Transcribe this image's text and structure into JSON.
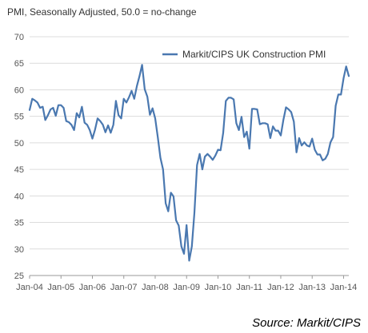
{
  "chart_data": {
    "type": "line",
    "subtitle": "PMI, Seasonally Adjusted, 50.0 = no-change",
    "source": "Source: Markit/CIPS",
    "xlabel": "",
    "ylabel": "",
    "ylim": [
      25,
      70
    ],
    "y_ticks": [
      25,
      30,
      35,
      40,
      45,
      50,
      55,
      60,
      65,
      70
    ],
    "x_ticks": [
      "Jan-04",
      "Jan-05",
      "Jan-06",
      "Jan-07",
      "Jan-08",
      "Jan-09",
      "Jan-10",
      "Jan-11",
      "Jan-12",
      "Jan-13",
      "Jan-14"
    ],
    "x_range": [
      "2004-01",
      "2014-03"
    ],
    "grid": "horizontal",
    "legend_position": "top-right",
    "series": [
      {
        "name": "Markit/CIPS UK Construction PMI",
        "color": "#4a78b0",
        "x": [
          "2004-01",
          "2004-02",
          "2004-03",
          "2004-04",
          "2004-05",
          "2004-06",
          "2004-07",
          "2004-08",
          "2004-09",
          "2004-10",
          "2004-11",
          "2004-12",
          "2005-01",
          "2005-02",
          "2005-03",
          "2005-04",
          "2005-05",
          "2005-06",
          "2005-07",
          "2005-08",
          "2005-09",
          "2005-10",
          "2005-11",
          "2005-12",
          "2006-01",
          "2006-02",
          "2006-03",
          "2006-04",
          "2006-05",
          "2006-06",
          "2006-07",
          "2006-08",
          "2006-09",
          "2006-10",
          "2006-11",
          "2006-12",
          "2007-01",
          "2007-02",
          "2007-03",
          "2007-04",
          "2007-05",
          "2007-06",
          "2007-07",
          "2007-08",
          "2007-09",
          "2007-10",
          "2007-11",
          "2007-12",
          "2008-01",
          "2008-02",
          "2008-03",
          "2008-04",
          "2008-05",
          "2008-06",
          "2008-07",
          "2008-08",
          "2008-09",
          "2008-10",
          "2008-11",
          "2008-12",
          "2009-01",
          "2009-02",
          "2009-03",
          "2009-04",
          "2009-05",
          "2009-06",
          "2009-07",
          "2009-08",
          "2009-09",
          "2009-10",
          "2009-11",
          "2009-12",
          "2010-01",
          "2010-02",
          "2010-03",
          "2010-04",
          "2010-05",
          "2010-06",
          "2010-07",
          "2010-08",
          "2010-09",
          "2010-10",
          "2010-11",
          "2010-12",
          "2011-01",
          "2011-02",
          "2011-03",
          "2011-04",
          "2011-05",
          "2011-06",
          "2011-07",
          "2011-08",
          "2011-09",
          "2011-10",
          "2011-11",
          "2011-12",
          "2012-01",
          "2012-02",
          "2012-03",
          "2012-04",
          "2012-05",
          "2012-06",
          "2012-07",
          "2012-08",
          "2012-09",
          "2012-10",
          "2012-11",
          "2012-12",
          "2013-01",
          "2013-02",
          "2013-03",
          "2013-04",
          "2013-05",
          "2013-06",
          "2013-07",
          "2013-08",
          "2013-09",
          "2013-10",
          "2013-11",
          "2013-12",
          "2014-01",
          "2014-02",
          "2014-03"
        ],
        "values": [
          56.2,
          58.3,
          58.0,
          57.6,
          56.6,
          56.8,
          54.3,
          55.2,
          56.3,
          56.6,
          55.1,
          57.1,
          57.1,
          56.6,
          54.1,
          53.9,
          53.4,
          52.4,
          55.6,
          54.8,
          56.8,
          53.8,
          53.4,
          52.4,
          50.8,
          52.5,
          54.6,
          54.1,
          53.4,
          52.0,
          53.3,
          51.9,
          53.4,
          57.9,
          55.2,
          54.6,
          58.3,
          57.6,
          58.6,
          59.8,
          58.3,
          60.7,
          62.6,
          64.7,
          60.1,
          58.7,
          55.3,
          56.5,
          54.6,
          51.0,
          47.2,
          45.0,
          38.6,
          37.1,
          40.6,
          39.9,
          35.4,
          34.4,
          30.5,
          29.1,
          34.5,
          27.8,
          30.5,
          36.8,
          45.8,
          47.9,
          45.0,
          47.4,
          47.9,
          47.4,
          46.8,
          47.6,
          48.7,
          48.6,
          51.9,
          57.9,
          58.5,
          58.5,
          58.2,
          53.7,
          52.4,
          54.9,
          51.1,
          52.1,
          48.9,
          56.4,
          56.4,
          56.3,
          53.5,
          53.7,
          53.7,
          53.5,
          50.9,
          53.1,
          52.3,
          52.3,
          51.4,
          54.3,
          56.7,
          56.3,
          55.8,
          54.0,
          48.2,
          50.9,
          49.5,
          50.1,
          49.5,
          49.3,
          50.8,
          48.7,
          47.8,
          47.8,
          46.7,
          47.0,
          47.9,
          50.1,
          51.1,
          57.0,
          59.1,
          59.1,
          62.2,
          64.4,
          62.6
        ]
      }
    ]
  }
}
